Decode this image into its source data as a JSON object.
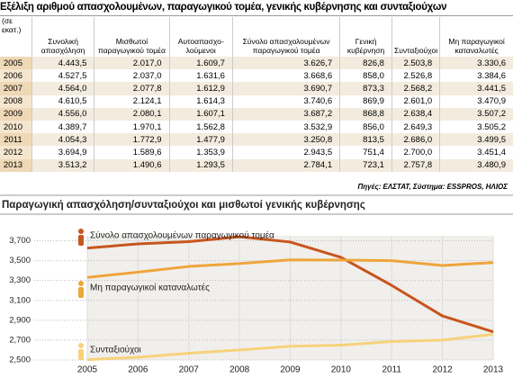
{
  "header": {
    "title": "Εξέλιξη αριθμού απασχολουμένων, παραγωγικού τομέα, γενικής κυβέρνησης και συνταξιούχων"
  },
  "table": {
    "unit": "(σε εκατ.)",
    "columns": [
      "Συνολική απασχόληση",
      "Μισθωτοί παραγωγικού τομέα",
      "Αυτοαπασχο-λούμενοι",
      "Σύνολο απασχολουμένων παραγωγικού τομέα",
      "Γενική κυβέρνηση",
      "Συνταξιούχοι",
      "Μη παραγωγικοί καταναλωτές"
    ],
    "rows": [
      [
        "2005",
        "4.443,5",
        "2.017,0",
        "1.609,7",
        "3.626,7",
        "826,8",
        "2.503,8",
        "3.330,6"
      ],
      [
        "2006",
        "4.527,5",
        "2.037,0",
        "1.631,6",
        "3.668,6",
        "858,0",
        "2.526,8",
        "3.384,6"
      ],
      [
        "2007",
        "4.564,0",
        "2.077,8",
        "1.612,9",
        "3.690,7",
        "873,3",
        "2.568,2",
        "3.441,5"
      ],
      [
        "2008",
        "4.610,5",
        "2.124,1",
        "1.614,3",
        "3.740,6",
        "869,9",
        "2.601,0",
        "3.470,9"
      ],
      [
        "2009",
        "4.556,0",
        "2.080,1",
        "1.607,1",
        "3.687,2",
        "868,8",
        "2.638,4",
        "3.507,2"
      ],
      [
        "2010",
        "4.389,7",
        "1.970,1",
        "1.562,8",
        "3.532,9",
        "856,0",
        "2.649,3",
        "3.505,2"
      ],
      [
        "2011",
        "4.054,3",
        "1.772,9",
        "1.477,9",
        "3.250,8",
        "813,5",
        "2.686,0",
        "3.499,5"
      ],
      [
        "2012",
        "3.694,9",
        "1.589,6",
        "1.353,9",
        "2.943,5",
        "751,4",
        "2.700,0",
        "3.451,4"
      ],
      [
        "2013",
        "3.513,2",
        "1.490,6",
        "1.293,5",
        "2.784,1",
        "723,1",
        "2.757,8",
        "3.480,9"
      ]
    ],
    "source": "Πηγές: ΕΛΣΤΑΤ, Σύστημα: ESSPROS, ΗΛΙΟΣ"
  },
  "chart_data": {
    "type": "line",
    "title": "Παραγωγική απασχόληση/συνταξιούχοι και μισθωτοί γενικής κυβέρνησης",
    "categories": [
      "2005",
      "2006",
      "2007",
      "2008",
      "2009",
      "2010",
      "2011",
      "2012",
      "2013"
    ],
    "series": [
      {
        "name": "Σύνολο απασχολουμένων παραγωγικού τομέα",
        "color": "#c8551e",
        "values": [
          3626.7,
          3668.6,
          3690.7,
          3740.6,
          3687.2,
          3532.9,
          3250.8,
          2943.5,
          2784.1
        ]
      },
      {
        "name": "Μη παραγωγικοί καταναλωτές",
        "color": "#eea53a",
        "values": [
          3330.6,
          3384.6,
          3441.5,
          3470.9,
          3507.2,
          3505.2,
          3499.5,
          3451.4,
          3480.9
        ]
      },
      {
        "name": "Συνταξιούχοι",
        "color": "#f6d27a",
        "values": [
          2503.8,
          2526.8,
          2568.2,
          2601.0,
          2638.4,
          2649.3,
          2686.0,
          2700.0,
          2757.8
        ]
      }
    ],
    "ylim": [
      2500,
      3750
    ],
    "yticks": [
      {
        "value": 2500,
        "label": "2,500"
      },
      {
        "value": 2700,
        "label": "2,700"
      },
      {
        "value": 2900,
        "label": "2,900"
      },
      {
        "value": 3100,
        "label": "3,100"
      },
      {
        "value": 3300,
        "label": "3,300"
      },
      {
        "value": 3500,
        "label": "3,500"
      },
      {
        "value": 3700,
        "label": "3,700"
      }
    ],
    "grid": true
  }
}
